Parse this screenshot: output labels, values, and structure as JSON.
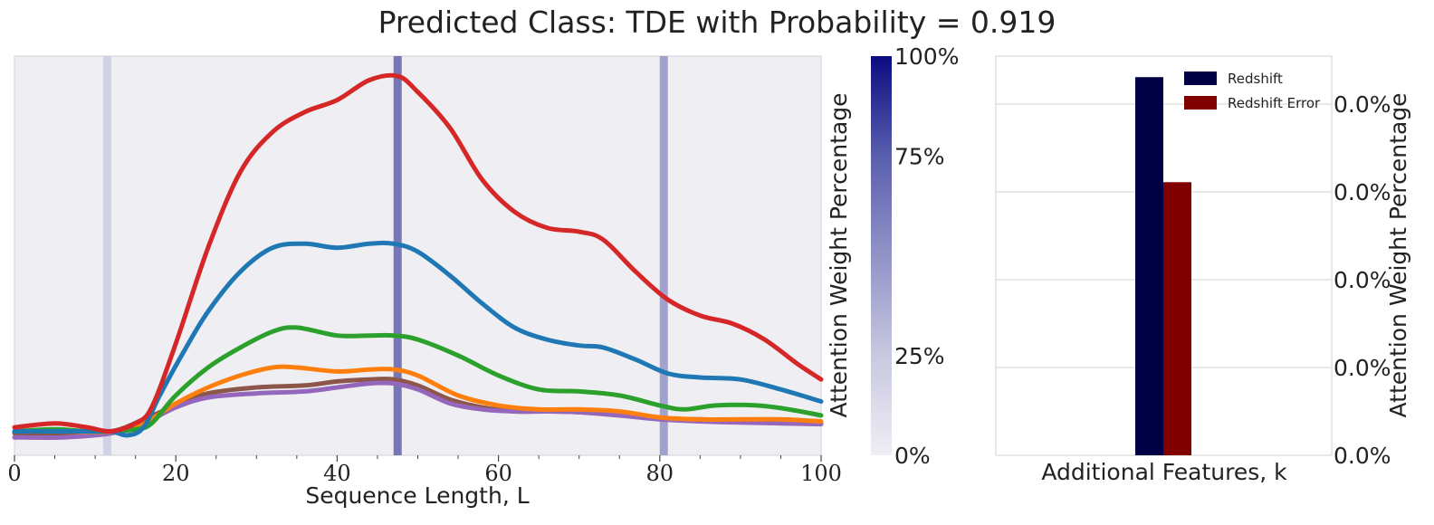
{
  "title": "Predicted Class: TDE with Probability = 0.919",
  "chart_data": [
    {
      "type": "line",
      "xlabel": "Sequence Length, L",
      "ylabel": "",
      "xlim": [
        0,
        100
      ],
      "ylim": [
        0,
        1
      ],
      "xticks": [
        "0",
        "20",
        "40",
        "60",
        "80",
        "100"
      ],
      "grid": false,
      "attention_bands": [
        {
          "x": 11.5,
          "weight": 0.15
        },
        {
          "x": 47.5,
          "weight": 0.62
        },
        {
          "x": 80.5,
          "weight": 0.4
        }
      ],
      "series": [
        {
          "color": "#d62728",
          "values": [
            [
              0,
              0.07
            ],
            [
              5,
              0.08
            ],
            [
              9,
              0.07
            ],
            [
              12,
              0.06
            ],
            [
              15,
              0.08
            ],
            [
              17,
              0.12
            ],
            [
              20,
              0.28
            ],
            [
              24,
              0.52
            ],
            [
              28,
              0.71
            ],
            [
              32,
              0.81
            ],
            [
              36,
              0.86
            ],
            [
              40,
              0.89
            ],
            [
              44,
              0.94
            ],
            [
              47.5,
              0.95
            ],
            [
              50,
              0.91
            ],
            [
              54,
              0.82
            ],
            [
              58,
              0.69
            ],
            [
              62,
              0.61
            ],
            [
              66,
              0.57
            ],
            [
              70,
              0.56
            ],
            [
              73,
              0.54
            ],
            [
              77,
              0.46
            ],
            [
              81,
              0.39
            ],
            [
              85,
              0.35
            ],
            [
              89,
              0.33
            ],
            [
              93,
              0.29
            ],
            [
              97,
              0.23
            ],
            [
              100,
              0.19
            ]
          ]
        },
        {
          "color": "#1f77b4",
          "values": [
            [
              0,
              0.06
            ],
            [
              5,
              0.06
            ],
            [
              9,
              0.06
            ],
            [
              12,
              0.06
            ],
            [
              14,
              0.05
            ],
            [
              16,
              0.07
            ],
            [
              18,
              0.15
            ],
            [
              21,
              0.26
            ],
            [
              24,
              0.36
            ],
            [
              28,
              0.46
            ],
            [
              32,
              0.52
            ],
            [
              36,
              0.53
            ],
            [
              40,
              0.52
            ],
            [
              44,
              0.53
            ],
            [
              47,
              0.53
            ],
            [
              50,
              0.51
            ],
            [
              54,
              0.45
            ],
            [
              58,
              0.38
            ],
            [
              62,
              0.32
            ],
            [
              66,
              0.29
            ],
            [
              70,
              0.275
            ],
            [
              73,
              0.27
            ],
            [
              77,
              0.24
            ],
            [
              81,
              0.205
            ],
            [
              85,
              0.195
            ],
            [
              90,
              0.19
            ],
            [
              95,
              0.165
            ],
            [
              100,
              0.135
            ]
          ]
        },
        {
          "color": "#2ca02c",
          "values": [
            [
              0,
              0.06
            ],
            [
              5,
              0.065
            ],
            [
              9,
              0.06
            ],
            [
              12,
              0.06
            ],
            [
              15,
              0.065
            ],
            [
              17,
              0.08
            ],
            [
              20,
              0.15
            ],
            [
              24,
              0.22
            ],
            [
              28,
              0.27
            ],
            [
              32,
              0.31
            ],
            [
              35,
              0.32
            ],
            [
              40,
              0.3
            ],
            [
              44,
              0.3
            ],
            [
              47,
              0.3
            ],
            [
              50,
              0.29
            ],
            [
              55,
              0.25
            ],
            [
              60,
              0.2
            ],
            [
              65,
              0.165
            ],
            [
              70,
              0.16
            ],
            [
              75,
              0.15
            ],
            [
              80,
              0.125
            ],
            [
              83,
              0.115
            ],
            [
              87,
              0.125
            ],
            [
              92,
              0.125
            ],
            [
              96,
              0.115
            ],
            [
              100,
              0.1
            ]
          ]
        },
        {
          "color": "#ff7f0e",
          "values": [
            [
              0,
              0.06
            ],
            [
              6,
              0.06
            ],
            [
              12,
              0.06
            ],
            [
              16,
              0.08
            ],
            [
              20,
              0.13
            ],
            [
              24,
              0.17
            ],
            [
              28,
              0.2
            ],
            [
              32,
              0.22
            ],
            [
              35,
              0.22
            ],
            [
              40,
              0.21
            ],
            [
              44,
              0.215
            ],
            [
              47,
              0.215
            ],
            [
              50,
              0.2
            ],
            [
              55,
              0.15
            ],
            [
              60,
              0.125
            ],
            [
              65,
              0.115
            ],
            [
              70,
              0.115
            ],
            [
              75,
              0.11
            ],
            [
              80,
              0.095
            ],
            [
              85,
              0.09
            ],
            [
              90,
              0.09
            ],
            [
              95,
              0.09
            ],
            [
              100,
              0.085
            ]
          ]
        },
        {
          "color": "#9467bd",
          "values": [
            [
              0,
              0.045
            ],
            [
              6,
              0.045
            ],
            [
              12,
              0.055
            ],
            [
              16,
              0.08
            ],
            [
              20,
              0.12
            ],
            [
              24,
              0.145
            ],
            [
              30,
              0.155
            ],
            [
              36,
              0.16
            ],
            [
              40,
              0.17
            ],
            [
              44,
              0.18
            ],
            [
              47,
              0.18
            ],
            [
              50,
              0.165
            ],
            [
              54,
              0.13
            ],
            [
              58,
              0.115
            ],
            [
              62,
              0.11
            ],
            [
              66,
              0.11
            ],
            [
              70,
              0.108
            ],
            [
              75,
              0.1
            ],
            [
              80,
              0.09
            ],
            [
              85,
              0.085
            ],
            [
              90,
              0.082
            ],
            [
              95,
              0.08
            ],
            [
              100,
              0.078
            ]
          ]
        },
        {
          "color": "#8c564b",
          "values": [
            [
              0,
              0.055
            ],
            [
              6,
              0.055
            ],
            [
              12,
              0.06
            ],
            [
              16,
              0.09
            ],
            [
              20,
              0.125
            ],
            [
              24,
              0.155
            ],
            [
              30,
              0.17
            ],
            [
              36,
              0.175
            ],
            [
              40,
              0.185
            ],
            [
              44,
              0.19
            ],
            [
              47,
              0.19
            ],
            [
              50,
              0.175
            ],
            [
              54,
              0.14
            ],
            [
              58,
              0.12
            ],
            [
              62,
              0.11
            ],
            [
              66,
              0.11
            ],
            [
              70,
              0.108
            ],
            [
              75,
              0.1
            ],
            [
              80,
              0.092
            ],
            [
              85,
              0.09
            ],
            [
              90,
              0.088
            ],
            [
              95,
              0.085
            ],
            [
              100,
              0.08
            ]
          ]
        }
      ]
    },
    {
      "type": "colorbar",
      "ylabel": "Attention Weight Percentage",
      "ticks": [
        "0%",
        "25%",
        "75%",
        "100%"
      ],
      "tick_values": [
        0,
        0.25,
        0.75,
        1.0
      ],
      "color_low": "#eeeef5",
      "color_high": "#0a0c80"
    },
    {
      "type": "bar",
      "xlabel": "Additional Features, k",
      "ylabel": "Attention Weight Percentage",
      "yticks": [
        "0.0%",
        "0.0%",
        "0.0%",
        "0.0%",
        "0.0%"
      ],
      "legend_position": "top-right",
      "series": [
        {
          "name": "Redshift",
          "color": "#000044",
          "value": 0.54
        },
        {
          "name": "Redshift Error",
          "color": "#800000",
          "value": 0.39
        }
      ],
      "ylim": [
        0,
        0.57
      ]
    }
  ]
}
